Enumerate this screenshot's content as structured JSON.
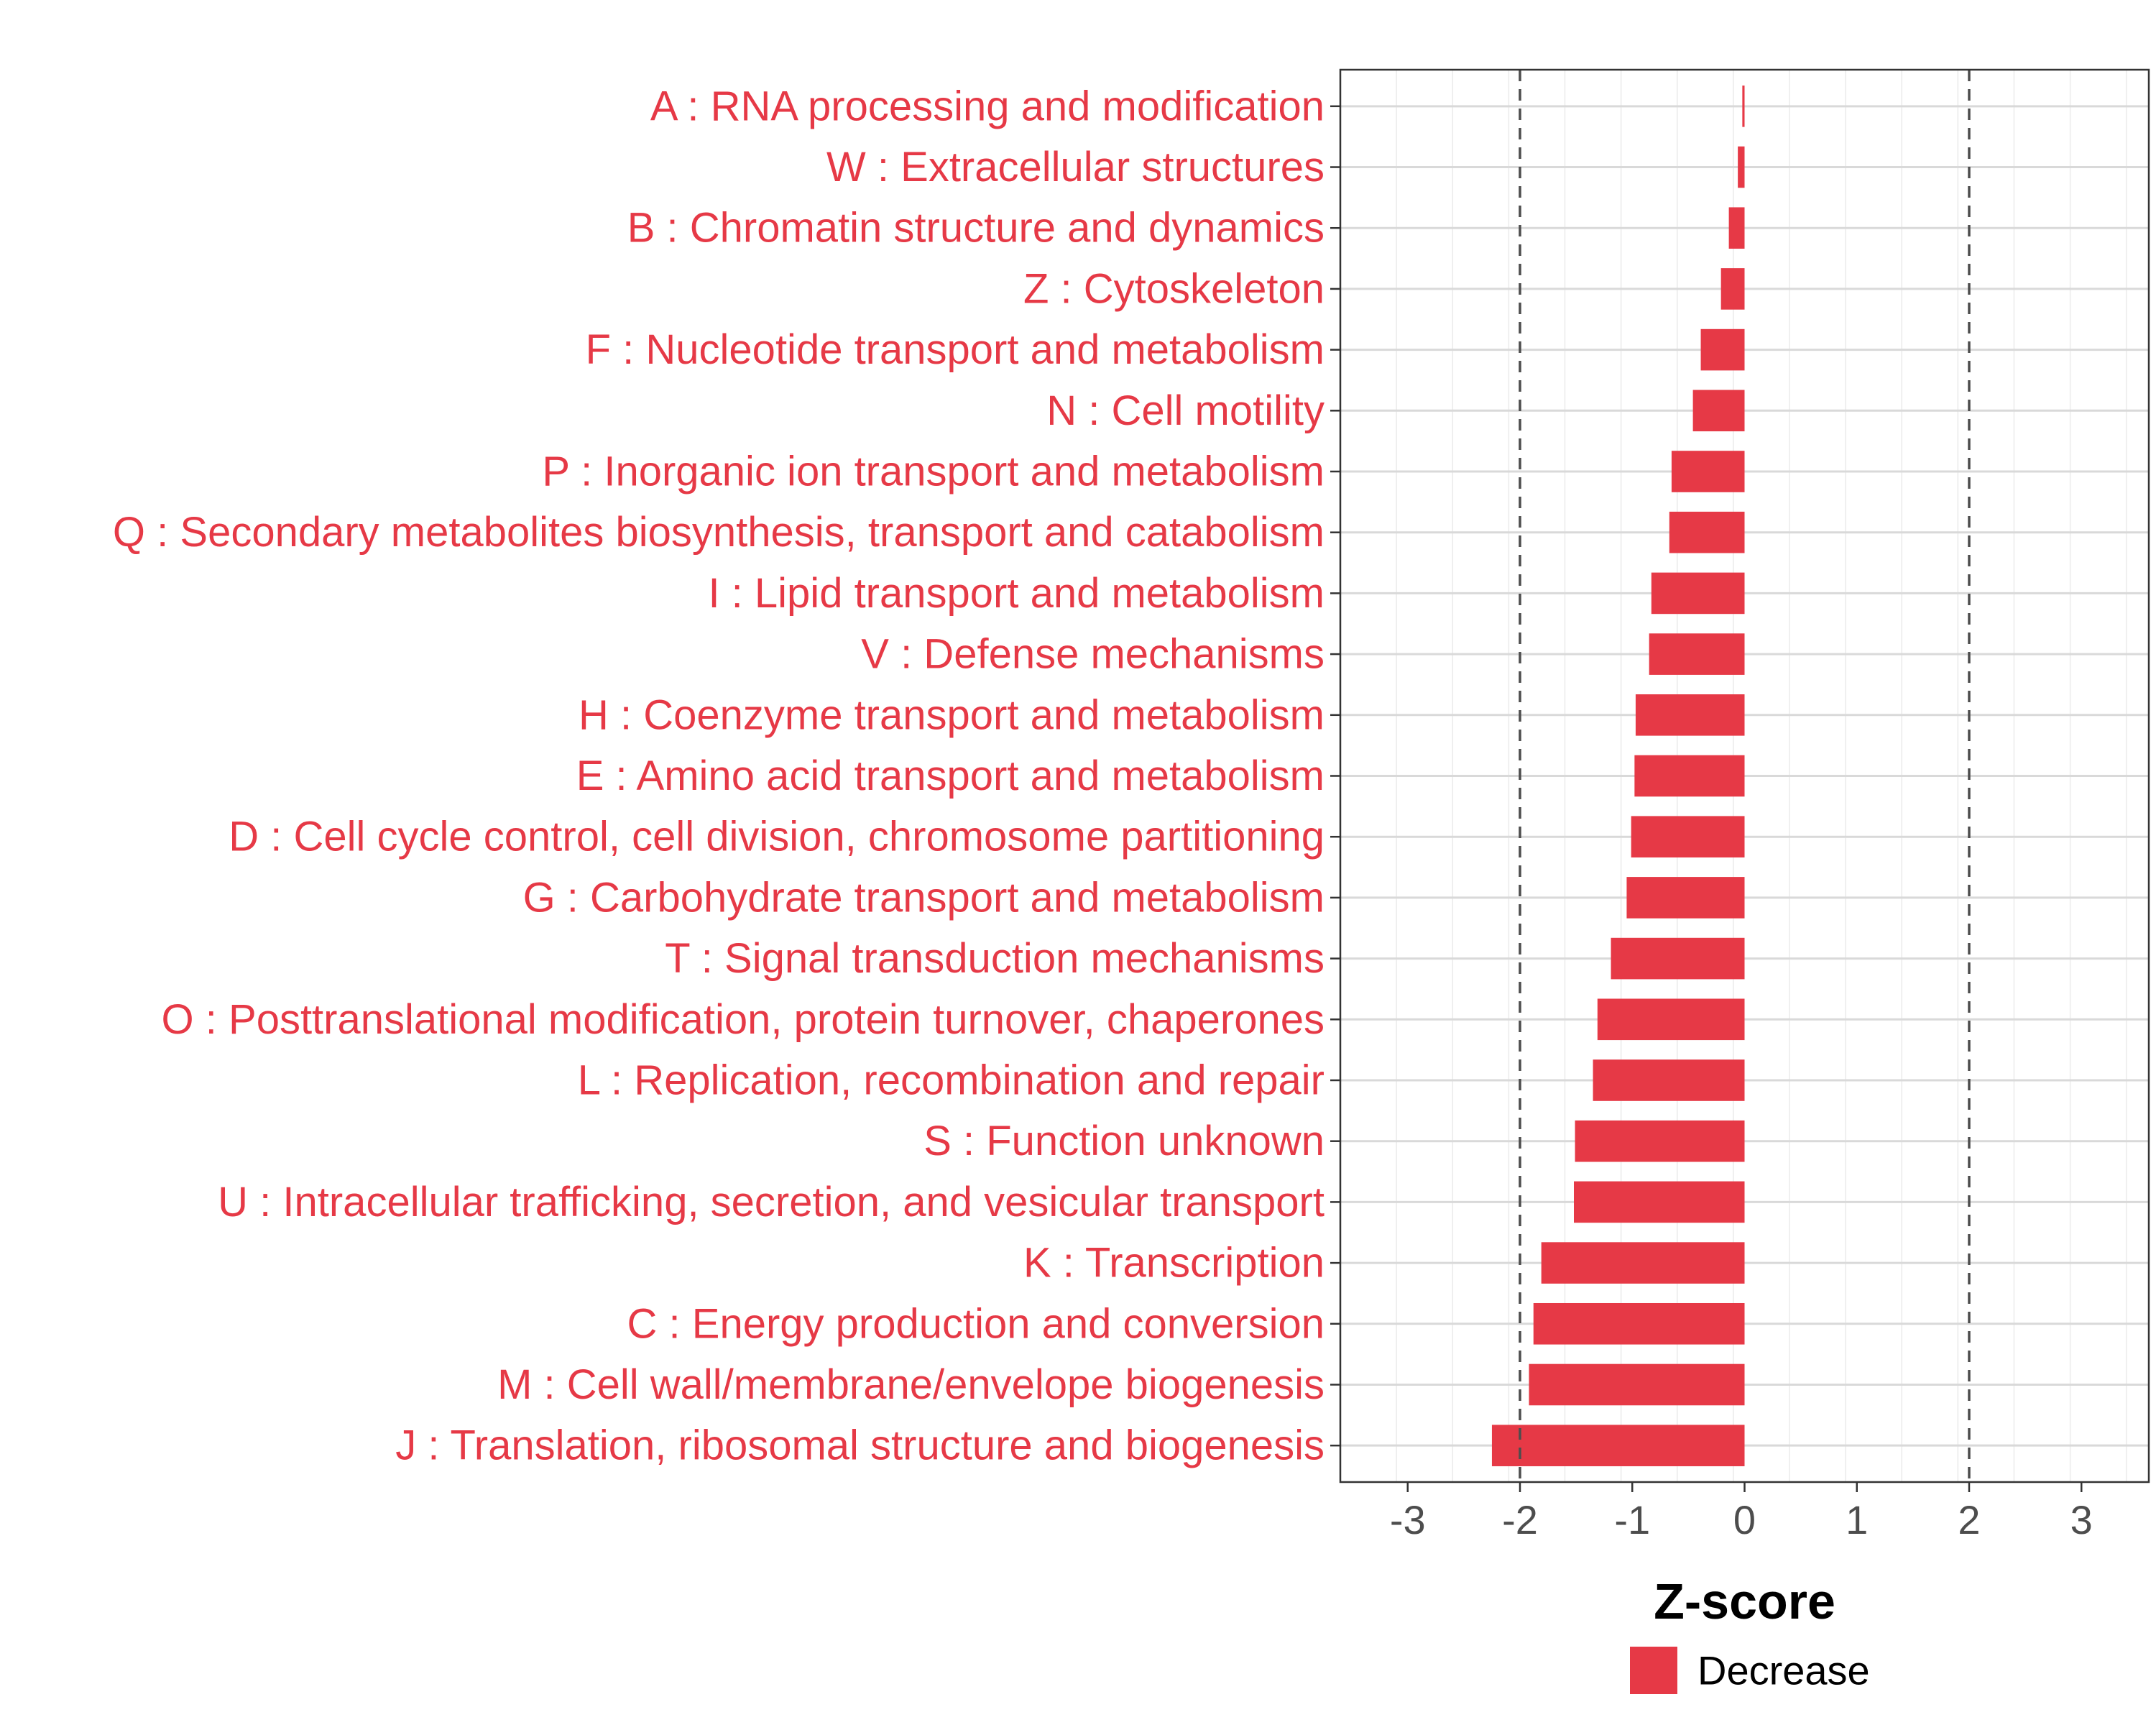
{
  "chart_data": {
    "type": "bar",
    "orientation": "horizontal",
    "xlabel": "Z-score",
    "xlim": [
      -3.6,
      3.6
    ],
    "xticks": [
      -3,
      -2,
      -1,
      0,
      1,
      2,
      3
    ],
    "reference_lines": [
      -2,
      2
    ],
    "grid": true,
    "legend": {
      "position": "bottom",
      "entries": [
        {
          "label": "Decrease",
          "color": "#e63946"
        }
      ]
    },
    "bar_color": "#e63946",
    "label_color": "#e63946",
    "categories": [
      "A : RNA processing and modification",
      "W : Extracellular structures",
      "B : Chromatin structure and dynamics",
      "Z : Cytoskeleton",
      "F : Nucleotide transport and metabolism",
      "N : Cell motility",
      "P : Inorganic ion transport and metabolism",
      "Q : Secondary metabolites biosynthesis, transport and catabolism",
      "I : Lipid transport and metabolism",
      "V : Defense mechanisms",
      "H : Coenzyme transport and metabolism",
      "E : Amino acid transport and metabolism",
      "D : Cell cycle control, cell division, chromosome partitioning",
      "G : Carbohydrate transport and metabolism",
      "T : Signal transduction mechanisms",
      "O : Posttranslational modification, protein turnover, chaperones",
      "L : Replication, recombination and repair",
      "S : Function unknown",
      "U : Intracellular trafficking, secretion, and vesicular transport",
      "K : Transcription",
      "C : Energy production and conversion",
      "M : Cell wall/membrane/envelope biogenesis",
      "J : Translation, ribosomal structure and biogenesis"
    ],
    "values": [
      -0.02,
      -0.06,
      -0.14,
      -0.21,
      -0.39,
      -0.46,
      -0.65,
      -0.67,
      -0.83,
      -0.85,
      -0.97,
      -0.98,
      -1.01,
      -1.05,
      -1.19,
      -1.31,
      -1.35,
      -1.51,
      -1.52,
      -1.81,
      -1.88,
      -1.92,
      -2.25
    ]
  }
}
